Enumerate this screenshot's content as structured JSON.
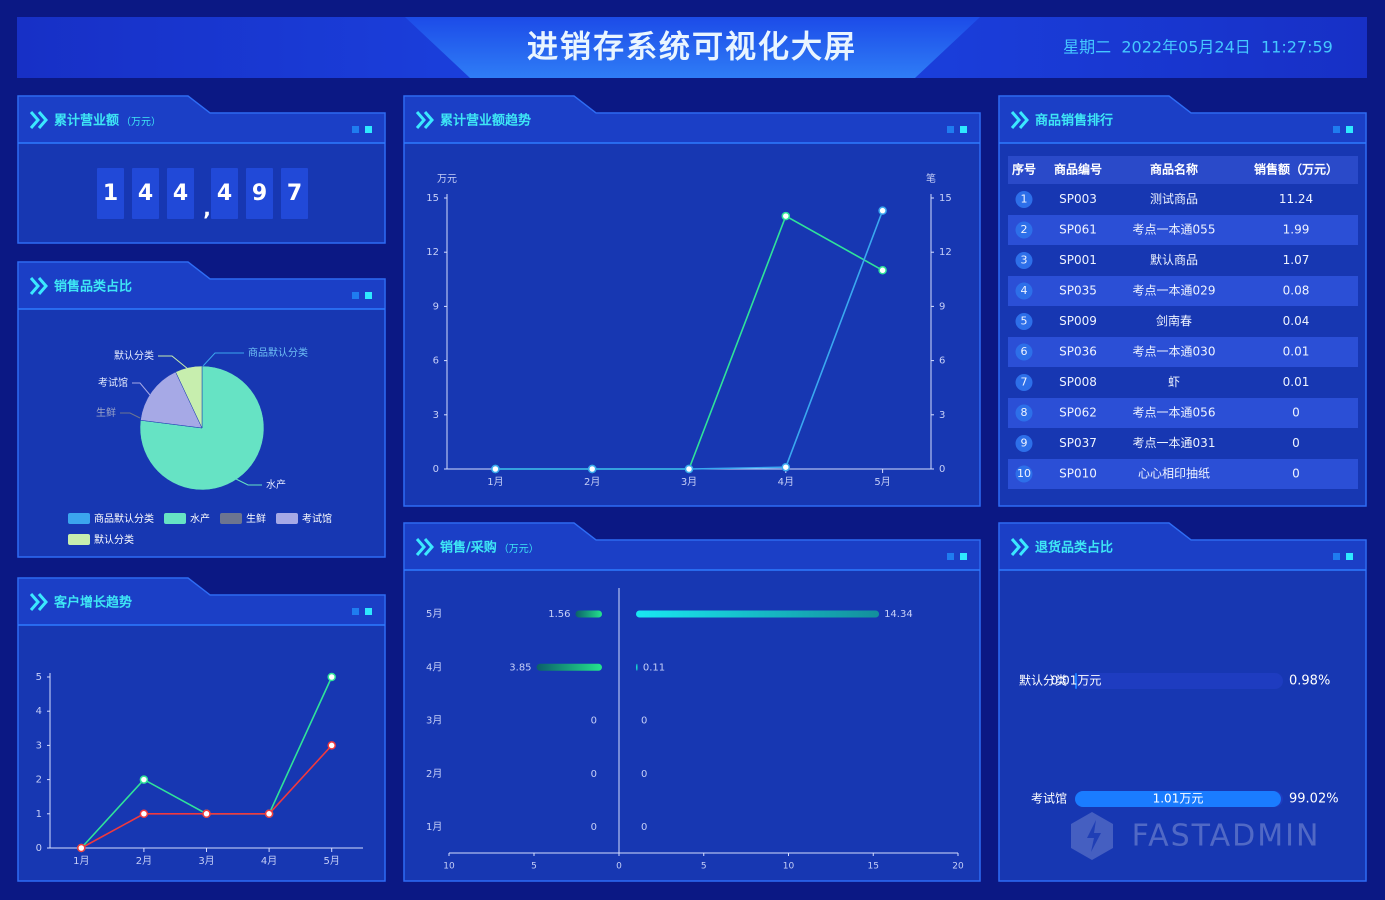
{
  "header": {
    "title": "进销存系统可视化大屏",
    "datetime": "星期二  2022年05月24日  11:27:59"
  },
  "revenue_total": {
    "title": "累计营业额",
    "unit": "（万元）",
    "digits": [
      "1",
      "4",
      "4",
      ",",
      "4",
      "9",
      "7"
    ]
  },
  "ranking": {
    "title": "商品销售排行",
    "columns": [
      "序号",
      "商品编号",
      "商品名称",
      "销售额（万元）"
    ],
    "rows": [
      [
        1,
        "SP003",
        "测试商品",
        11.24
      ],
      [
        2,
        "SP061",
        "考点一本通055",
        1.99
      ],
      [
        3,
        "SP001",
        "默认商品",
        1.07
      ],
      [
        4,
        "SP035",
        "考点一本通029",
        0.08
      ],
      [
        5,
        "SP009",
        "剑南春",
        0.04
      ],
      [
        6,
        "SP036",
        "考点一本通030",
        0.01
      ],
      [
        7,
        "SP008",
        "虾",
        0.01
      ],
      [
        8,
        "SP062",
        "考点一本通056",
        0
      ],
      [
        9,
        "SP037",
        "考点一本通031",
        0
      ],
      [
        10,
        "SP010",
        "心心相印抽纸",
        0
      ]
    ]
  },
  "chart_data": [
    {
      "type": "pie",
      "title": "销售品类占比",
      "categories": [
        "商品默认分类",
        "水产",
        "生鲜",
        "考试馆",
        "默认分类"
      ],
      "values": [
        0,
        77,
        0,
        16,
        7
      ],
      "colors": [
        "#3ba5ee",
        "#66e3c4",
        "#6c7590",
        "#a6a9e6",
        "#c7eeae"
      ],
      "legend": "bottom"
    },
    {
      "type": "line",
      "title": "客户增长趋势",
      "categories": [
        "1月",
        "2月",
        "3月",
        "4月",
        "5月"
      ],
      "series": [
        {
          "color": "#2fe39a",
          "values": [
            0,
            2,
            1,
            1,
            5
          ]
        },
        {
          "color": "#f0393e",
          "values": [
            0,
            1,
            1,
            1,
            3
          ]
        }
      ],
      "ylim": [
        0,
        5
      ],
      "yticks": [
        0,
        1,
        2,
        3,
        4,
        5
      ]
    },
    {
      "type": "line",
      "title": "累计营业额趋势",
      "y_label": "万元",
      "y2_label": "笔",
      "categories": [
        "1月",
        "2月",
        "3月",
        "4月",
        "5月"
      ],
      "series": [
        {
          "color": "#2fe39a",
          "values": [
            0,
            0,
            0,
            14,
            11
          ]
        },
        {
          "color": "#3aa8f0",
          "axis": "y2",
          "values": [
            0,
            0,
            0,
            0.1,
            14.3
          ]
        }
      ],
      "ylim": [
        0,
        15
      ],
      "yticks": [
        0,
        3,
        6,
        9,
        12,
        15
      ],
      "y2lim": [
        0,
        15
      ],
      "y2ticks": [
        0,
        3,
        6,
        9,
        12,
        15
      ]
    },
    {
      "type": "butterfly",
      "title": "销售/采购",
      "unit": "（万元）",
      "categories": [
        "5月",
        "4月",
        "3月",
        "2月",
        "1月"
      ],
      "series": [
        {
          "color": "#1fe08a",
          "values": [
            1.56,
            3.85,
            0,
            0,
            0
          ],
          "xlim": [
            10,
            0
          ],
          "xticks": [
            10,
            5
          ]
        },
        {
          "color": "#14e3ee",
          "values": [
            14.34,
            0.11,
            0,
            0,
            0
          ],
          "xlim": [
            0,
            20
          ],
          "xticks": [
            0,
            5,
            10,
            15,
            20
          ]
        }
      ]
    },
    {
      "type": "progress",
      "title": "退货品类占比",
      "categories": [
        "默认分类",
        "考试馆"
      ],
      "values": [
        0.98,
        99.02
      ],
      "value_labels": [
        "0.98%",
        "99.02%"
      ],
      "amount_labels": [
        "0.01万元",
        "1.01万元"
      ],
      "xlim": [
        0,
        100
      ],
      "color": "#1a7cff",
      "watermark": "FASTADMIN"
    }
  ]
}
